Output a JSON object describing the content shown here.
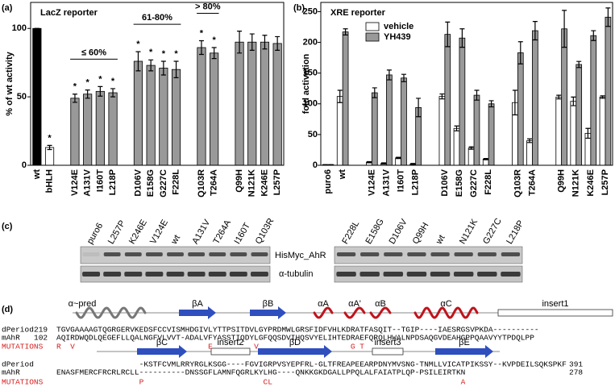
{
  "chart_data": [
    {
      "type": "bar",
      "panel": "(a)",
      "title": "LacZ reporter",
      "ylabel": "% of wt activity",
      "categories": [
        "wt",
        "bHLH",
        null,
        "V124E",
        "A131V",
        "I160T",
        "L218P",
        null,
        "D106V",
        "E158G",
        "G227C",
        "F228L",
        null,
        "Q103R",
        "T264A",
        null,
        "Q99H",
        "N121K",
        "K246E",
        "L257P"
      ],
      "values": [
        100,
        13,
        null,
        49,
        52,
        54,
        53,
        null,
        76,
        73,
        71,
        70,
        null,
        86,
        82,
        null,
        90,
        90,
        90,
        89
      ],
      "errors": [
        0,
        1.5,
        null,
        3,
        3,
        3.5,
        3,
        null,
        7,
        4,
        5,
        6,
        null,
        5,
        4,
        null,
        8,
        6,
        5,
        5
      ],
      "colors": [
        "#000000",
        "#ffffff",
        null,
        "#999999",
        "#999999",
        "#999999",
        "#999999",
        null,
        "#999999",
        "#999999",
        "#999999",
        "#999999",
        null,
        "#999999",
        "#999999",
        null,
        "#999999",
        "#999999",
        "#999999",
        "#999999"
      ],
      "markers": [
        null,
        "*",
        null,
        "*",
        "*",
        "*",
        "*",
        null,
        "*",
        "*",
        "*",
        "*",
        null,
        "*",
        "*",
        null,
        null,
        null,
        null,
        null
      ],
      "brackets": [
        "≤ 60%",
        "61-80%",
        "> 80%"
      ],
      "ylim": [
        0,
        119
      ],
      "yticks": [
        0,
        50,
        100
      ]
    },
    {
      "type": "bar",
      "panel": "(b)",
      "title": "XRE reporter",
      "ylabel": "fold activation",
      "legend": "upper left",
      "categories": [
        "puro6",
        "wt",
        null,
        "V124E",
        "A131V",
        "I160T",
        "L218P",
        null,
        "D106V",
        "E158G",
        "G227C",
        "F228L",
        null,
        "Q103R",
        "T264A",
        null,
        "Q99H",
        "N121K",
        "K246E",
        "L257P"
      ],
      "series": [
        {
          "name": "vehicle",
          "color": "#ffffff",
          "values": [
            1,
            112,
            null,
            5,
            3,
            12,
            2,
            null,
            112,
            60,
            28,
            10,
            null,
            102,
            40,
            null,
            111,
            104,
            52,
            111
          ],
          "errors": [
            0,
            10,
            null,
            1,
            1,
            1,
            1,
            null,
            4,
            4,
            2,
            1,
            null,
            20,
            3,
            null,
            3,
            7,
            8,
            2
          ]
        },
        {
          "name": "YH439",
          "color": "#999999",
          "values": [
            1,
            217,
            null,
            118,
            147,
            142,
            94,
            null,
            213,
            207,
            114,
            100,
            null,
            183,
            219,
            null,
            222,
            164,
            211,
            241
          ],
          "errors": [
            0,
            5,
            null,
            8,
            8,
            6,
            15,
            null,
            20,
            15,
            8,
            5,
            null,
            18,
            15,
            null,
            30,
            5,
            8,
            15
          ]
        }
      ],
      "ylim": [
        0,
        265
      ],
      "yticks": [
        0,
        50,
        100,
        150,
        200,
        250
      ]
    }
  ],
  "blot": {
    "panel": "(c)",
    "lanes": [
      [
        "puro6",
        "L257P",
        "K246E",
        "V124E",
        "wt",
        "A131V",
        "T264A",
        "I160T",
        "Q103R"
      ],
      [
        "F228L",
        "E158G",
        "D106V",
        "Q99H",
        "wt",
        "N121K",
        "G227C",
        "L218P"
      ]
    ],
    "proteins": [
      "HisMyc_AhR",
      "α-tubulin"
    ]
  },
  "alignment": {
    "panel": "(d)",
    "structure": [
      [
        "α~pred",
        "βA",
        "βB",
        "αA",
        "αA'",
        "αB",
        "αC",
        "insert1"
      ],
      [
        "βC",
        "insert2",
        "βD",
        "insert3",
        "βE"
      ]
    ],
    "blocks": [
      {
        "rows": [
          {
            "name": "dPeriod",
            "start": 219,
            "seq": "TGVGAAAAGTQGRGERVKEDSFCCVISMHDGIVLYTTPSITDVLGYPRDMWLGRSFIDFVHLKDRATFASQIT--TGIP----IAESRGSVPKDA----------"
          },
          {
            "name": "mAhR",
            "start": 102,
            "seq": "AQIRDWQDLQEGEFLLQALNGFVLVVT-ADALVFYASSTIQDYLGFQQSDVIHQSVYELIHTEDRAEFQRQLHWALNPDSAQGVDEAHGPPQAAVYYTPDQLPP"
          },
          {
            "name": "MUTATIONS",
            "seq": "R  V                             E         V                    G T"
          }
        ]
      },
      {
        "rows": [
          {
            "name": "dPeriod",
            "seq": "                  -KSTFCVMLRRYRGLKSGG----FGVIGRPVSYEPFRL-GLTFREAPEEARPDNYMVSNG-TNMLLVICATPIKSSY--KVPDEILSQKSPKF",
            "end": 391
          },
          {
            "name": "mAhR",
            "seq": "ENASFMERCFRCRLRCLL----------DNSSGFLAMNFQGRLKYLHG----QNKKGKDGALLPPQLALFAIATPLQP-PSILEIRTKN",
            "end": 278
          },
          {
            "name": "MUTATIONS",
            "seq": "                  P                          CL                                         A"
          }
        ]
      }
    ]
  }
}
